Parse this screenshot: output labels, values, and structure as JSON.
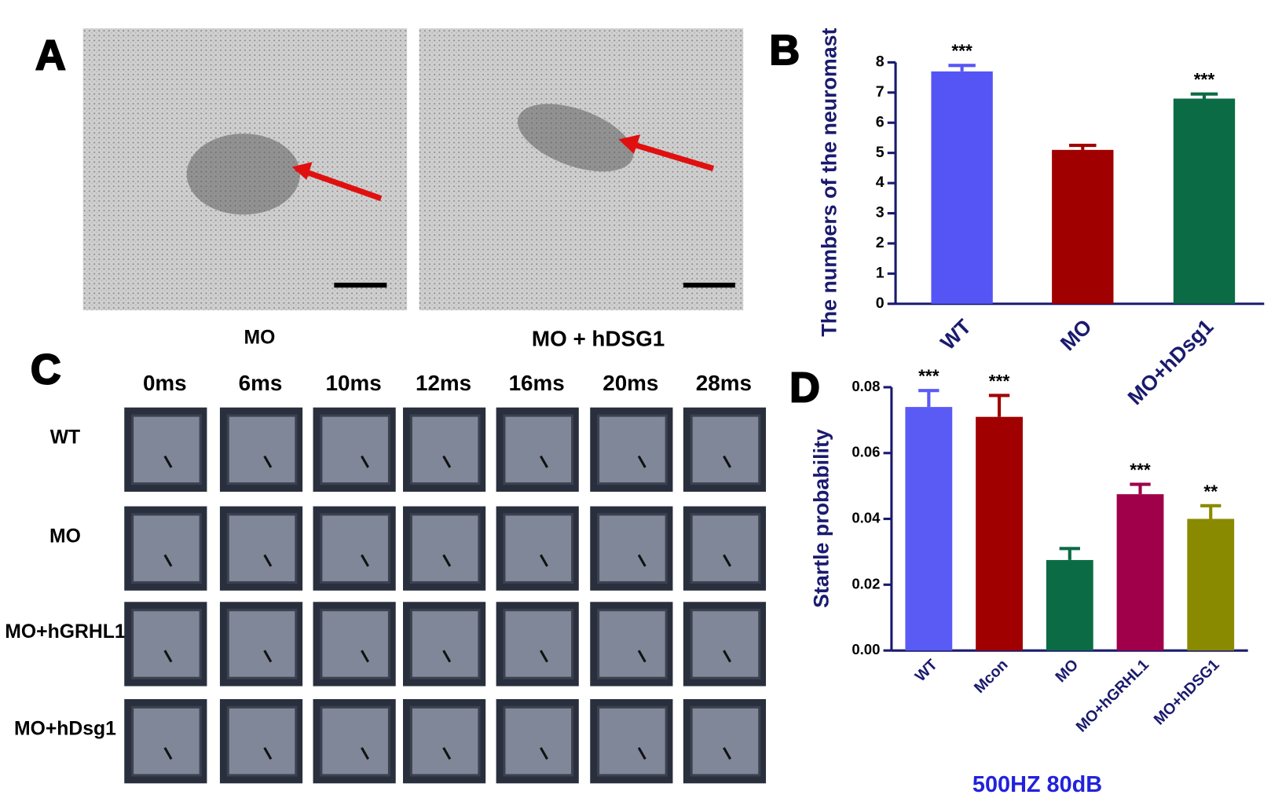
{
  "figure": {
    "panel_labels": [
      "A",
      "B",
      "C",
      "D"
    ],
    "panel_a": {
      "images": [
        "MO",
        "MO + hDSG1"
      ]
    },
    "panel_c": {
      "times": [
        "0ms",
        "6ms",
        "10ms",
        "12ms",
        "16ms",
        "20ms",
        "28ms"
      ],
      "rows": [
        "WT",
        "MO",
        "MO+hGRHL1",
        "MO+hDsg1"
      ]
    }
  },
  "chart_data": [
    {
      "type": "bar",
      "ylabel": "The numbers of the neuromast",
      "categories": [
        "WT",
        "MO",
        "MO+hDsg1"
      ],
      "values": [
        7.7,
        5.1,
        6.8
      ],
      "errors": [
        0.2,
        0.15,
        0.15
      ],
      "annotations": [
        "***",
        null,
        "***"
      ],
      "colors": [
        "#5555f5",
        "#a00000",
        "#0b6b45"
      ],
      "ylim": [
        0,
        8
      ],
      "yticks": [
        0,
        1,
        2,
        3,
        4,
        5,
        6,
        7,
        8
      ]
    },
    {
      "type": "bar",
      "ylabel": "Startle probability",
      "xlabel": "500HZ 80dB",
      "categories": [
        "WT",
        "Mcon",
        "MO",
        "MO+hGRHL1",
        "MO+hDSG1"
      ],
      "values": [
        0.074,
        0.071,
        0.0275,
        0.0475,
        0.04
      ],
      "errors": [
        0.005,
        0.0065,
        0.0035,
        0.003,
        0.004
      ],
      "annotations": [
        "***",
        "***",
        null,
        "***",
        "**"
      ],
      "colors": [
        "#5a5af5",
        "#a00000",
        "#0b6b45",
        "#a0004a",
        "#8a8a00"
      ],
      "ylim": [
        0,
        0.08
      ],
      "yticks": [
        {
          "value": 0,
          "label": "0.00"
        },
        {
          "value": 0.02,
          "label": "0.02"
        },
        {
          "value": 0.04,
          "label": "0.04"
        },
        {
          "value": 0.06,
          "label": "0.06"
        },
        {
          "value": 0.08,
          "label": "0.08"
        }
      ]
    }
  ]
}
